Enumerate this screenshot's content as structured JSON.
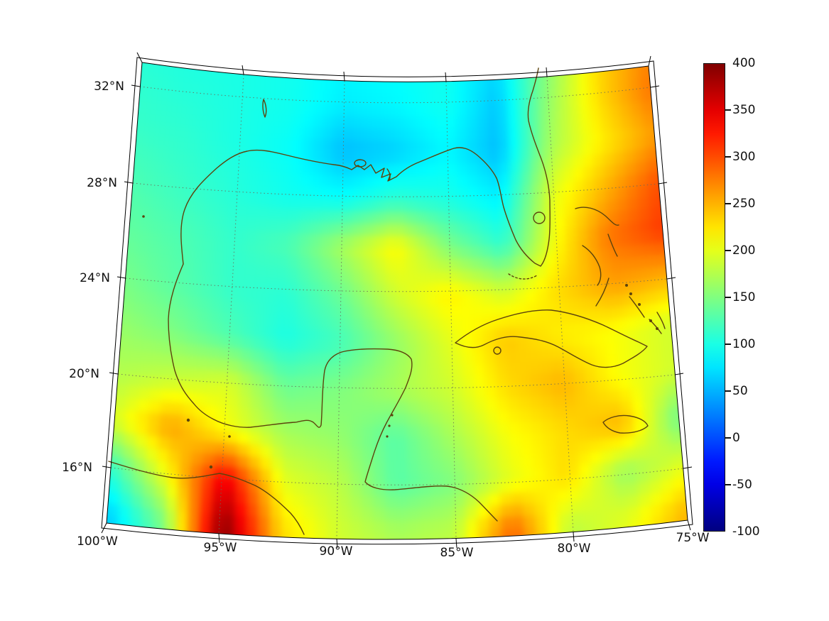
{
  "figure": {
    "background": "#ffffff",
    "title": ""
  },
  "axes": {
    "lat_ticks": [
      "32°N",
      "28°N",
      "24°N",
      "20°N",
      "16°N"
    ],
    "lon_ticks": [
      "100°W",
      "95°W",
      "90°W",
      "85°W",
      "80°W",
      "75°W"
    ]
  },
  "colorbar": {
    "min": -100,
    "max": 400,
    "colormap": "jet",
    "tick_labels": [
      "400",
      "350",
      "300",
      "250",
      "200",
      "150",
      "100",
      "50",
      "0",
      "-50",
      "-100"
    ]
  },
  "style": {
    "coastline_color": "#5c430d",
    "gridline_color": "#6b6b5a",
    "frame_color": "#000000",
    "label_color": "#111111"
  },
  "chart_data": {
    "type": "heatmap",
    "region": "Gulf of Mexico and Caribbean",
    "projection": "conic",
    "colormap": "jet",
    "vmin": -100,
    "vmax": 400,
    "colorbar_ticks": [
      400,
      350,
      300,
      250,
      200,
      150,
      100,
      50,
      0,
      -50,
      -100
    ],
    "lon_ticks_deg": [
      -100,
      -95,
      -90,
      -85,
      -80,
      -75
    ],
    "lat_ticks_deg": [
      32,
      28,
      24,
      20,
      16
    ],
    "grid": {
      "lons": [
        -100,
        -97.5,
        -95,
        -92.5,
        -90,
        -87.5,
        -85,
        -82.5,
        -80,
        -77.5,
        -75
      ],
      "lats": [
        34,
        32,
        30,
        28,
        26,
        24,
        22,
        20,
        18,
        16,
        14
      ],
      "values": [
        [
          105,
          100,
          100,
          95,
          85,
          90,
          95,
          70,
          150,
          230,
          270
        ],
        [
          110,
          105,
          100,
          95,
          80,
          85,
          95,
          60,
          160,
          230,
          280
        ],
        [
          115,
          110,
          100,
          90,
          55,
          65,
          85,
          55,
          170,
          220,
          260
        ],
        [
          125,
          115,
          105,
          95,
          90,
          110,
          100,
          80,
          200,
          250,
          300
        ],
        [
          135,
          125,
          112,
          125,
          170,
          215,
          150,
          110,
          210,
          280,
          310
        ],
        [
          145,
          130,
          112,
          108,
          140,
          190,
          220,
          190,
          230,
          260,
          250
        ],
        [
          160,
          148,
          125,
          100,
          120,
          160,
          200,
          240,
          220,
          210,
          190
        ],
        [
          175,
          185,
          195,
          140,
          150,
          170,
          190,
          230,
          250,
          210,
          190
        ],
        [
          195,
          260,
          210,
          170,
          160,
          130,
          170,
          210,
          230,
          250,
          140
        ],
        [
          110,
          210,
          350,
          200,
          180,
          130,
          150,
          200,
          230,
          160,
          200
        ],
        [
          60,
          150,
          400,
          230,
          190,
          170,
          180,
          290,
          180,
          200,
          250
        ]
      ]
    }
  }
}
